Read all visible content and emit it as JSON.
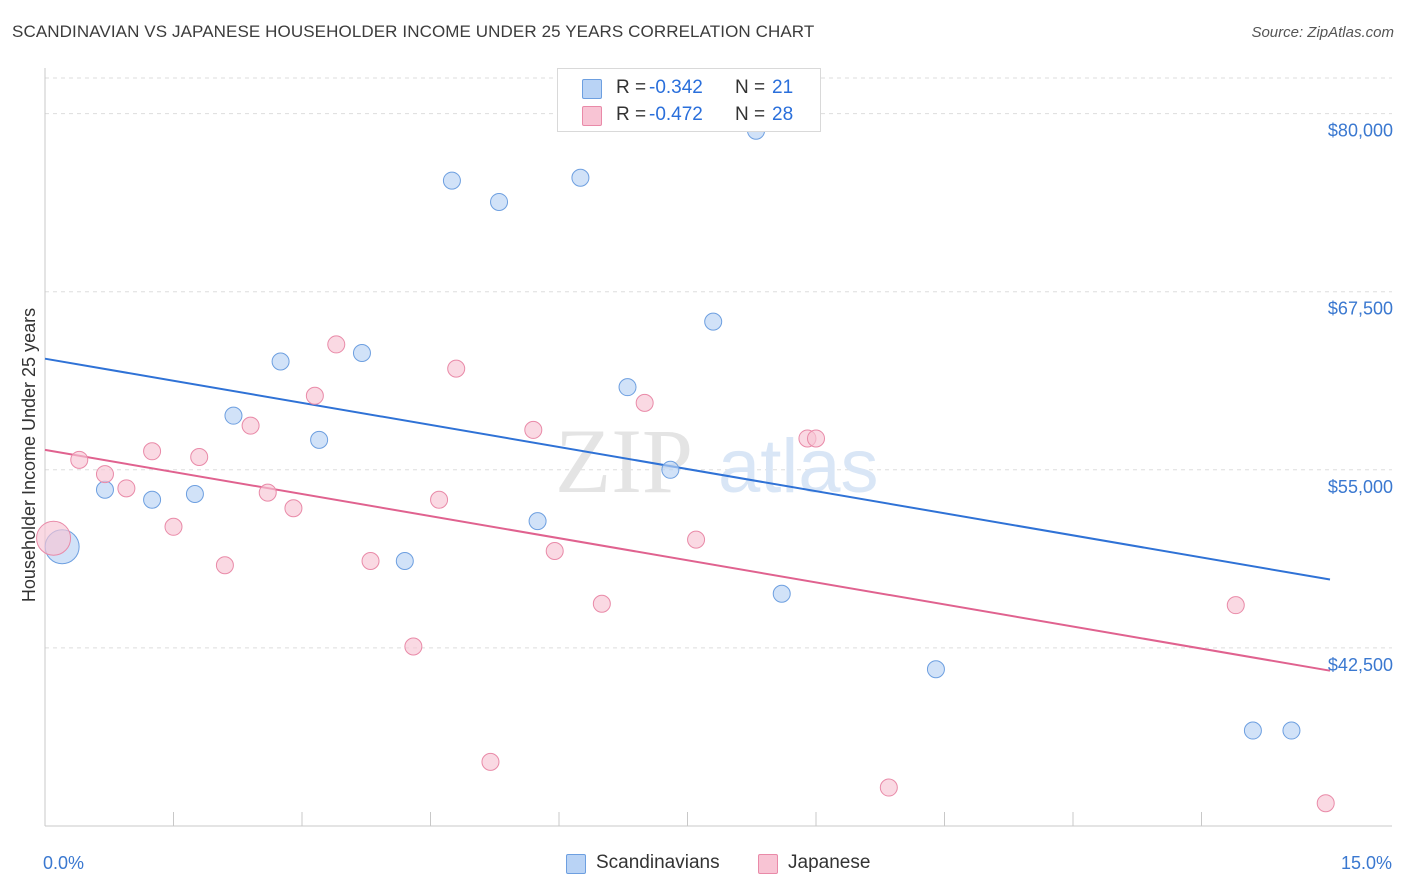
{
  "title": "SCANDINAVIAN VS JAPANESE HOUSEHOLDER INCOME UNDER 25 YEARS CORRELATION CHART",
  "source": "Source: ZipAtlas.com",
  "watermark": {
    "zip": "ZIP",
    "atlas": "atlas"
  },
  "colors": {
    "blue_fill": "#b9d3f5",
    "blue_stroke": "#6d9fe0",
    "blue_line": "#2f72d6",
    "pink_fill": "#f8c4d4",
    "pink_stroke": "#e98aa8",
    "pink_line": "#e0628f",
    "tick_label": "#3a78d0",
    "grid": "#dddddd"
  },
  "legend_top": [
    {
      "r_label": "R =",
      "r_value": "-0.342",
      "n_label": "N =",
      "n_value": "21",
      "color": "#b9d3f5",
      "border": "#6d9fe0"
    },
    {
      "r_label": "R =",
      "r_value": "-0.472",
      "n_label": "N =",
      "n_value": "28",
      "color": "#f8c4d4",
      "border": "#e98aa8"
    }
  ],
  "legend_bottom": [
    {
      "label": "Scandinavians",
      "color": "#b9d3f5",
      "border": "#6d9fe0"
    },
    {
      "label": "Japanese",
      "color": "#f8c4d4",
      "border": "#e98aa8"
    }
  ],
  "chart_data": {
    "type": "scatter",
    "title": "SCANDINAVIAN VS JAPANESE HOUSEHOLDER INCOME UNDER 25 YEARS CORRELATION CHART",
    "xlabel": "",
    "ylabel": "Householder Income Under 25 years",
    "xlim": [
      0,
      15
    ],
    "ylim": [
      30000,
      82500
    ],
    "x_tick_labels": [
      {
        "value": 0,
        "label": "0.0%"
      },
      {
        "value": 15,
        "label": "15.0%"
      }
    ],
    "x_minor_ticks": [
      1.5,
      3.0,
      4.5,
      6.0,
      7.5,
      9.0,
      10.5,
      12.0,
      13.5
    ],
    "y_ticks": [
      {
        "value": 80000,
        "label": "$80,000"
      },
      {
        "value": 67500,
        "label": "$67,500"
      },
      {
        "value": 55000,
        "label": "$55,000"
      },
      {
        "value": 42500,
        "label": "$42,500"
      }
    ],
    "grid": true,
    "legend": "top-center",
    "series": [
      {
        "name": "Scandinavians",
        "trend": {
          "x": [
            0,
            15
          ],
          "y": [
            62800,
            47300
          ]
        },
        "points": [
          {
            "x": 0.2,
            "y": 49600,
            "big": true
          },
          {
            "x": 0.7,
            "y": 53600
          },
          {
            "x": 1.25,
            "y": 52900
          },
          {
            "x": 1.75,
            "y": 53300
          },
          {
            "x": 2.2,
            "y": 58800
          },
          {
            "x": 2.75,
            "y": 62600
          },
          {
            "x": 3.2,
            "y": 57100
          },
          {
            "x": 3.7,
            "y": 63200
          },
          {
            "x": 4.2,
            "y": 48600
          },
          {
            "x": 4.75,
            "y": 75300
          },
          {
            "x": 5.3,
            "y": 73800
          },
          {
            "x": 5.75,
            "y": 51400
          },
          {
            "x": 6.25,
            "y": 75500
          },
          {
            "x": 6.8,
            "y": 60800
          },
          {
            "x": 7.3,
            "y": 55000
          },
          {
            "x": 7.8,
            "y": 65400
          },
          {
            "x": 8.3,
            "y": 78800
          },
          {
            "x": 8.6,
            "y": 46300
          },
          {
            "x": 10.4,
            "y": 41000
          },
          {
            "x": 14.1,
            "y": 36700
          },
          {
            "x": 14.55,
            "y": 36700
          }
        ]
      },
      {
        "name": "Japanese",
        "trend": {
          "x": [
            0,
            15
          ],
          "y": [
            56400,
            40900
          ]
        },
        "points": [
          {
            "x": 0.1,
            "y": 50200,
            "big": true
          },
          {
            "x": 0.4,
            "y": 55700
          },
          {
            "x": 0.7,
            "y": 54700
          },
          {
            "x": 0.95,
            "y": 53700
          },
          {
            "x": 1.25,
            "y": 56300
          },
          {
            "x": 1.5,
            "y": 51000
          },
          {
            "x": 1.8,
            "y": 55900
          },
          {
            "x": 2.1,
            "y": 48300
          },
          {
            "x": 2.4,
            "y": 58100
          },
          {
            "x": 2.6,
            "y": 53400
          },
          {
            "x": 2.9,
            "y": 52300
          },
          {
            "x": 3.15,
            "y": 60200
          },
          {
            "x": 3.4,
            "y": 63800
          },
          {
            "x": 3.8,
            "y": 48600
          },
          {
            "x": 4.3,
            "y": 42600
          },
          {
            "x": 4.6,
            "y": 52900
          },
          {
            "x": 4.8,
            "y": 62100
          },
          {
            "x": 5.2,
            "y": 34500
          },
          {
            "x": 5.7,
            "y": 57800
          },
          {
            "x": 5.95,
            "y": 49300
          },
          {
            "x": 6.5,
            "y": 45600
          },
          {
            "x": 7.0,
            "y": 59700
          },
          {
            "x": 7.6,
            "y": 50100
          },
          {
            "x": 8.9,
            "y": 57200
          },
          {
            "x": 9.0,
            "y": 57200
          },
          {
            "x": 9.85,
            "y": 32700
          },
          {
            "x": 13.9,
            "y": 45500
          },
          {
            "x": 14.95,
            "y": 31600
          }
        ]
      }
    ]
  }
}
